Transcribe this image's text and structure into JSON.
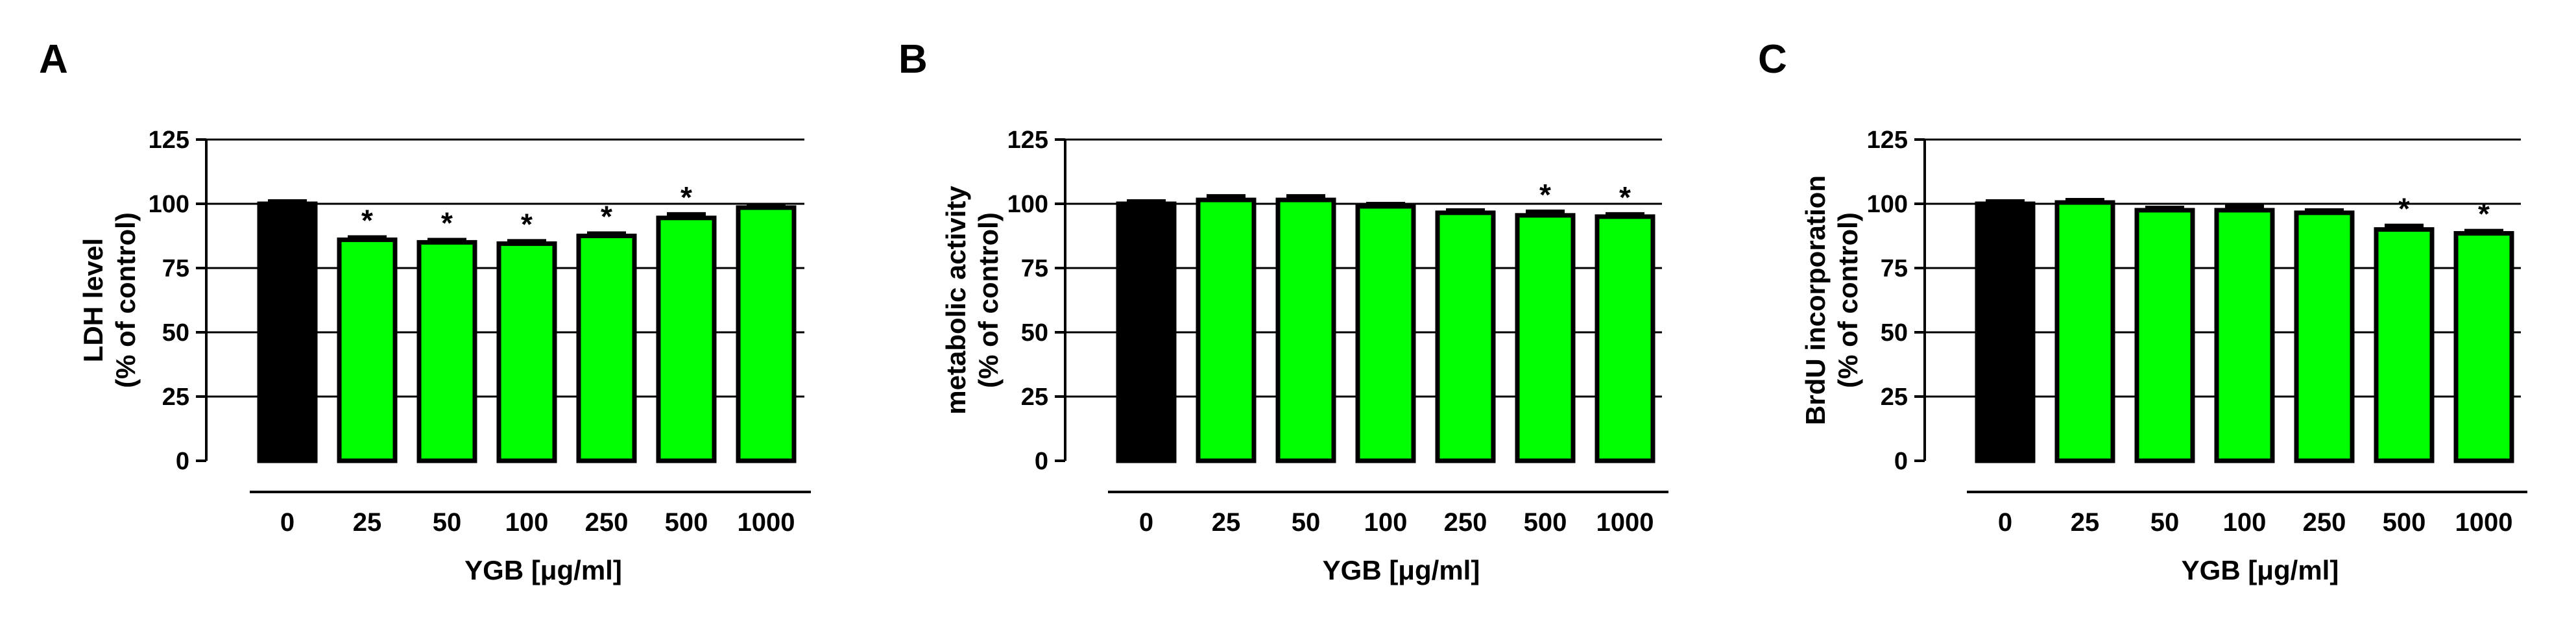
{
  "colors": {
    "control": "#000000",
    "treated": "#00ff00",
    "outline": "#000000"
  },
  "chart_data": [
    {
      "type": "bar",
      "panel": "A",
      "categories": [
        "0",
        "25",
        "50",
        "100",
        "250",
        "500",
        "1000"
      ],
      "values": [
        100,
        86,
        85,
        84.5,
        87.5,
        94.5,
        98.5
      ],
      "errors": [
        1,
        1,
        1,
        1,
        1,
        1.5,
        1
      ],
      "significant": [
        false,
        true,
        true,
        true,
        true,
        true,
        false
      ],
      "significance_marker": "*",
      "ylabel_line1": "LDH level",
      "ylabel_line2": "(% of control)",
      "xlabel": "YGB [μg/ml]",
      "ylim": [
        0,
        125
      ],
      "yticks": [
        "0",
        "25",
        "50",
        "75",
        "100",
        "125"
      ],
      "grid": "horizontal"
    },
    {
      "type": "bar",
      "panel": "B",
      "categories": [
        "0",
        "25",
        "50",
        "100",
        "250",
        "500",
        "1000"
      ],
      "values": [
        100,
        101.5,
        101.5,
        99,
        96.5,
        95.5,
        95
      ],
      "errors": [
        1,
        1.5,
        1.5,
        1,
        1,
        1.5,
        1
      ],
      "significant": [
        false,
        false,
        false,
        false,
        false,
        true,
        true
      ],
      "significance_marker": "*",
      "ylabel_line1": "metabolic activity",
      "ylabel_line2": "(% of control)",
      "xlabel": "YGB [μg/ml]",
      "ylim": [
        0,
        125
      ],
      "yticks": [
        "0",
        "25",
        "50",
        "75",
        "100",
        "125"
      ],
      "grid": "horizontal"
    },
    {
      "type": "bar",
      "panel": "C",
      "categories": [
        "0",
        "25",
        "50",
        "100",
        "250",
        "500",
        "1000"
      ],
      "values": [
        100,
        100.5,
        97.5,
        97.5,
        96.5,
        90,
        88.5
      ],
      "errors": [
        1,
        1,
        1,
        1.5,
        1,
        1.5,
        1
      ],
      "significant": [
        false,
        false,
        false,
        false,
        false,
        true,
        true
      ],
      "significance_marker": "*",
      "ylabel_line1": "BrdU incorporation",
      "ylabel_line2": "(% of control)",
      "xlabel": "YGB [μg/ml]",
      "ylim": [
        0,
        125
      ],
      "yticks": [
        "0",
        "25",
        "50",
        "75",
        "100",
        "125"
      ],
      "grid": "horizontal"
    }
  ]
}
